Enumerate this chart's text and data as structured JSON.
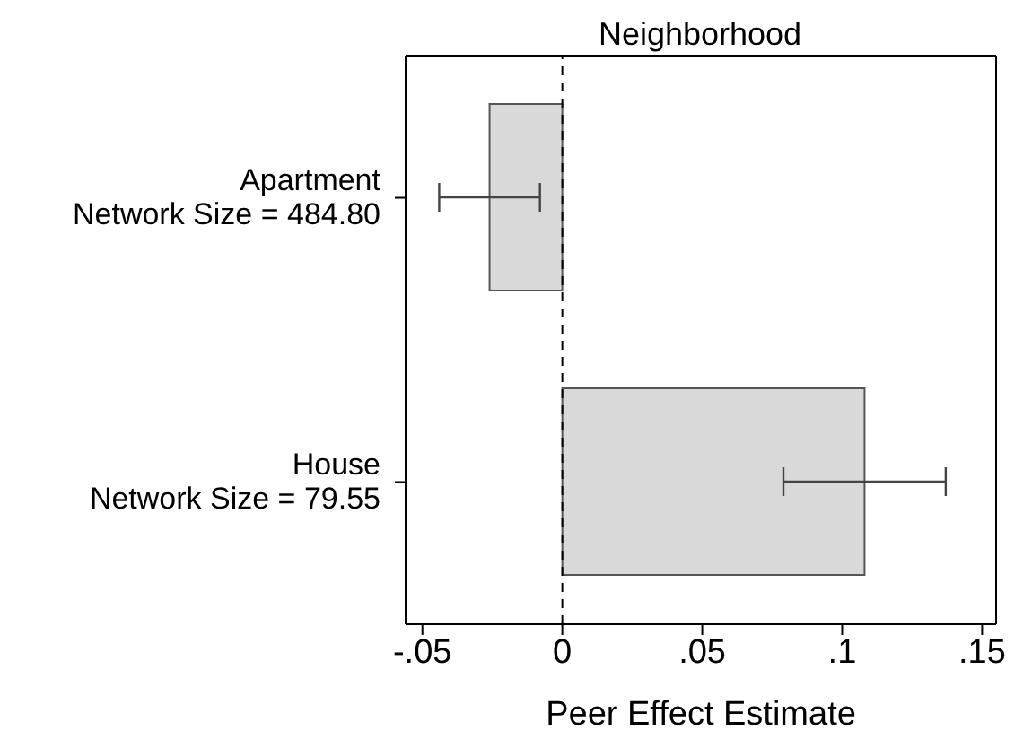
{
  "chart_data": {
    "type": "bar",
    "orientation": "horizontal",
    "title": "Neighborhood",
    "xlabel": "Peer Effect Estimate",
    "categories": [
      "Apartment\nNetwork Size = 484.80",
      "House\nNetwork Size = 79.55"
    ],
    "values": [
      -0.026,
      0.108
    ],
    "errors": [
      [
        -0.044,
        -0.008
      ],
      [
        0.079,
        0.137
      ]
    ],
    "color": "#d9d9d9",
    "xlim": [
      -0.056,
      0.155
    ],
    "xticks": [
      {
        "value": -0.05,
        "label": "-.05"
      },
      0,
      {
        "value": 0.05,
        "label": ".05"
      },
      {
        "value": 0.1,
        "label": ".1"
      },
      {
        "value": 0.15,
        "label": ".15"
      }
    ],
    "ref_lines": [
      {
        "axis": "x",
        "value": 0,
        "line_style": "dashed",
        "color": "#000000"
      }
    ],
    "grid": false,
    "legend": false
  }
}
